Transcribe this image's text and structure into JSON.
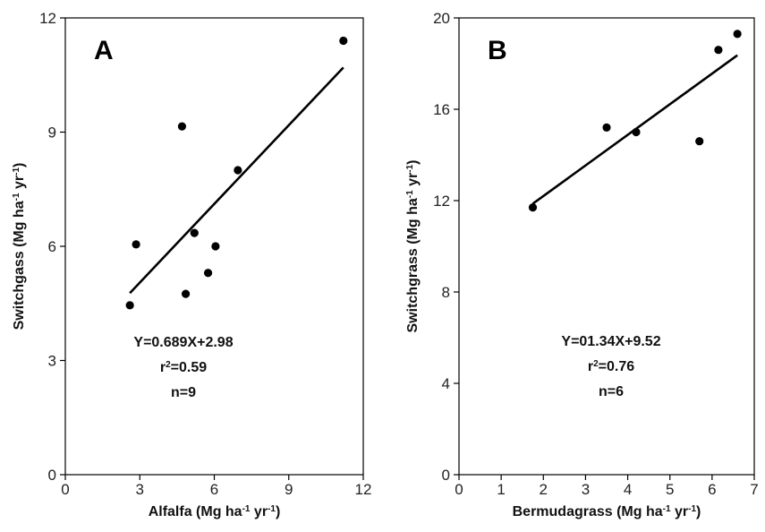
{
  "chart_data": [
    {
      "type": "scatter",
      "panel_label": "A",
      "xlabel": {
        "main": "Alfalfa (Mg ha",
        "sup1": "-1",
        "mid": " yr",
        "sup2": "-1",
        "end": ")"
      },
      "ylabel": {
        "main": "Switchgass (Mg ha",
        "sup1": "-1",
        "mid": " yr",
        "sup2": "-1",
        "end": ")"
      },
      "xlim": [
        0,
        12
      ],
      "ylim": [
        0,
        12
      ],
      "xticks": [
        0,
        3,
        6,
        9,
        12
      ],
      "yticks": [
        0,
        3,
        6,
        9,
        12
      ],
      "x": [
        2.6,
        2.85,
        4.7,
        4.85,
        5.2,
        5.75,
        6.05,
        6.95,
        11.2
      ],
      "y": [
        4.45,
        6.05,
        9.15,
        4.75,
        6.35,
        5.3,
        6.0,
        8.0,
        11.4
      ],
      "fit": {
        "slope": 0.689,
        "intercept": 2.98,
        "x_range": [
          2.6,
          11.2
        ]
      },
      "annotations": {
        "equation": "Y=0.689X+2.98",
        "r2_prefix": "r",
        "r2_sup": "2",
        "r2_value": "=0.59",
        "n": "n=9"
      },
      "grid": false
    },
    {
      "type": "scatter",
      "panel_label": "B",
      "xlabel": {
        "main": "Bermudagrass (Mg ha",
        "sup1": "-1",
        "mid": " yr",
        "sup2": "-1",
        "end": ")"
      },
      "ylabel": {
        "main": "Switchgrass (Mg ha",
        "sup1": "-1",
        "mid": " yr",
        "sup2": "-1",
        "end": ")"
      },
      "xlim": [
        0,
        7
      ],
      "ylim": [
        0,
        20
      ],
      "xticks": [
        0,
        1,
        2,
        3,
        4,
        5,
        6,
        7
      ],
      "yticks": [
        0,
        4,
        8,
        12,
        16,
        20
      ],
      "x": [
        1.75,
        3.5,
        4.2,
        5.7,
        6.15,
        6.6
      ],
      "y": [
        11.7,
        15.2,
        15.0,
        14.6,
        18.6,
        19.3
      ],
      "fit": {
        "slope": 1.34,
        "intercept": 9.52,
        "x_range": [
          1.75,
          6.6
        ]
      },
      "annotations": {
        "equation": "Y=01.34X+9.52",
        "r2_prefix": "r",
        "r2_sup": "2",
        "r2_value": "=0.76",
        "n": "n=6"
      },
      "grid": false
    }
  ]
}
